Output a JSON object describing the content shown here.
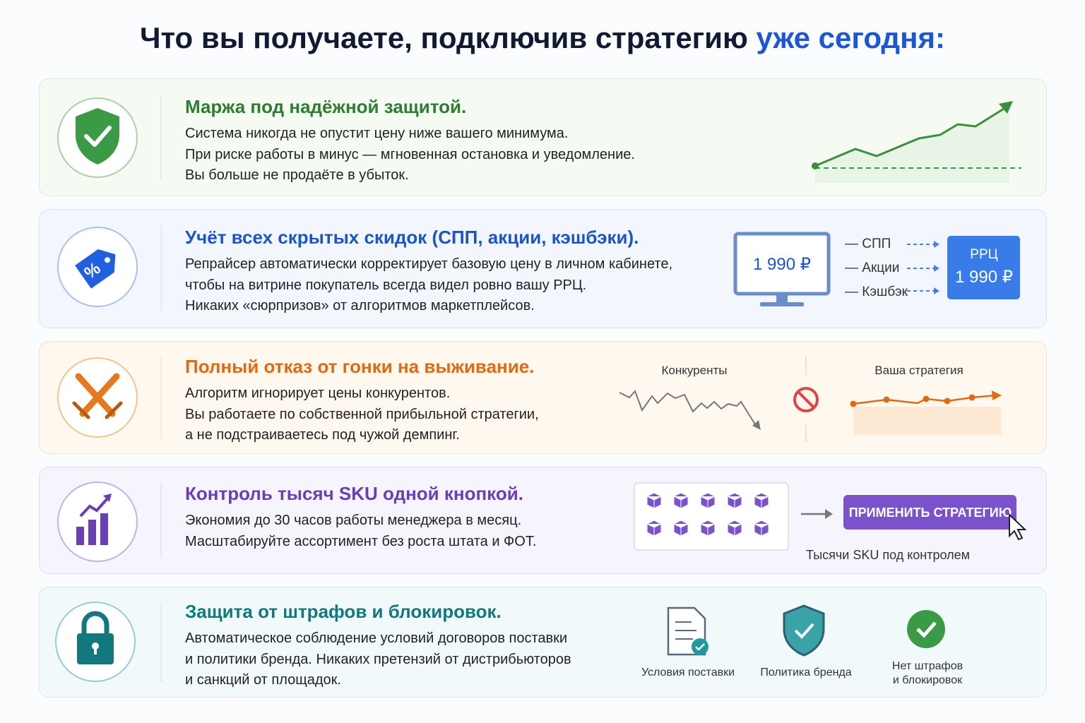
{
  "title": {
    "main": "Что вы получаете, подключив стратегию",
    "highlight": "уже сегодня:"
  },
  "cards": [
    {
      "title": "Маржа под надёжной защитой.",
      "lines": [
        "Система никогда не опустит цену ниже вашего минимума.",
        "При риске работы в минус — мгновенная остановка и уведомление.",
        "Вы больше не продаёте в убыток."
      ]
    },
    {
      "title": "Учёт всех скрытых скидок (СПП, акции, кэшбэки).",
      "lines": [
        "Репрайсер автоматически корректирует базовую цену в личном кабинете,",
        "чтобы на витрине покупатель всегда видел ровно вашу РРЦ.",
        "Никаких «сюрпризов» от алгоритмов маркетплейсов."
      ],
      "screen_price": "1 990 ₽",
      "discounts": [
        "— СПП",
        "— Акции",
        "— Кэшбэк"
      ],
      "target_label": "РРЦ",
      "target_price": "1 990 ₽"
    },
    {
      "title": "Полный отказ от гонки на выживание.",
      "lines": [
        "Алгоритм игнорирует цены конкурентов.",
        "Вы работаете по собственной прибыльной стратегии,",
        "а не подстраиваетесь под чужой демпинг."
      ],
      "left_label": "Конкуренты",
      "right_label": "Ваша стратегия"
    },
    {
      "title": "Контроль тысяч SKU одной кнопкой.",
      "lines": [
        "Экономия до 30 часов работы менеджера в месяц.",
        "Масштабируйте ассортимент без роста штата и ФОТ."
      ],
      "button": "ПРИМЕНИТЬ СТРАТЕГИЮ",
      "caption": "Тысячи SKU под контролем"
    },
    {
      "title": "Защита от штрафов и блокировок.",
      "lines": [
        "Автоматическое соблюдение условий договоров поставки",
        "и политики бренда. Никаких претензий от дистрибьюторов",
        "и санкций от площадок."
      ],
      "badges": [
        [
          "Условия поставки"
        ],
        [
          "Политика бренда"
        ],
        [
          "Нет штрафов",
          "и блокировок"
        ]
      ]
    }
  ]
}
